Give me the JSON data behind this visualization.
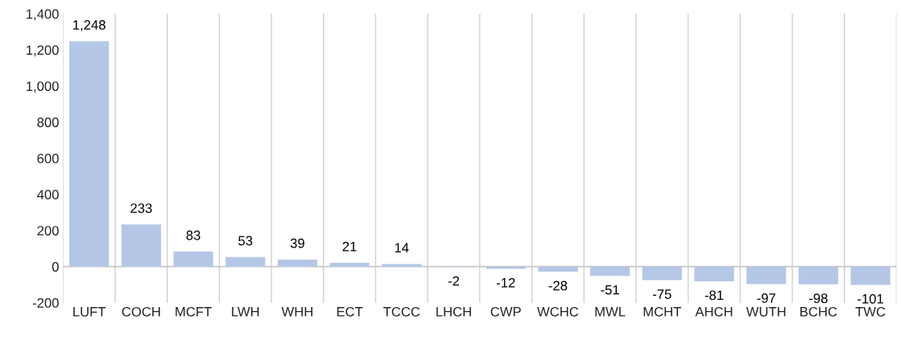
{
  "chart_data": {
    "type": "bar",
    "categories": [
      "LUFT",
      "COCH",
      "MCFT",
      "LWH",
      "WHH",
      "ECT",
      "TCCC",
      "LHCH",
      "CWP",
      "WCHC",
      "MWL",
      "MCHT",
      "AHCH",
      "WUTH",
      "BCHC",
      "TWC"
    ],
    "values": [
      1248,
      233,
      83,
      53,
      39,
      21,
      14,
      -2,
      -12,
      -28,
      -51,
      -75,
      -81,
      -97,
      -98,
      -101
    ],
    "value_labels": [
      "1,248",
      "233",
      "83",
      "53",
      "39",
      "21",
      "14",
      "-2",
      "-12",
      "-28",
      "-51",
      "-75",
      "-81",
      "-97",
      "-98",
      "-101"
    ],
    "color": "#b4c7e7",
    "ylim": [
      -200,
      1400
    ],
    "yticks": [
      -200,
      0,
      200,
      400,
      600,
      800,
      {
        "value": 1000,
        "label": "1,000"
      },
      {
        "value": 1200,
        "label": "1,200"
      },
      {
        "value": 1400,
        "label": "1,400"
      }
    ],
    "grid": "x"
  }
}
